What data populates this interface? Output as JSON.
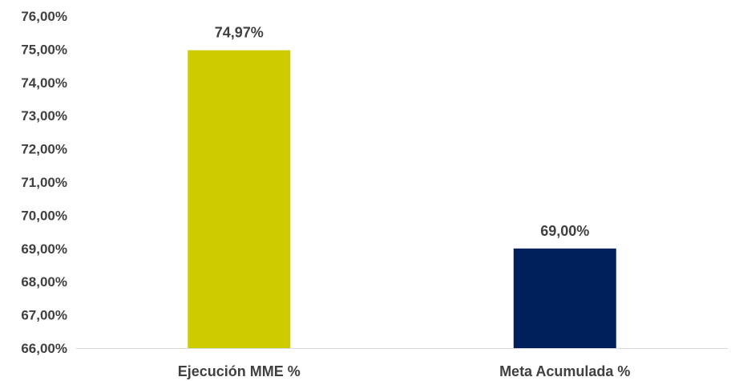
{
  "chart_data": {
    "type": "bar",
    "title": "",
    "xlabel": "",
    "ylabel": "",
    "categories": [
      "Ejecución MME %",
      "Meta Acumulada %"
    ],
    "values": [
      74.97,
      69.0
    ],
    "data_labels": [
      "74,97%",
      "69,00%"
    ],
    "bar_colors": [
      "#CCCC00",
      "#00205B"
    ],
    "ylim": [
      66,
      76
    ],
    "y_ticks": [
      "76,00%",
      "75,00%",
      "74,00%",
      "73,00%",
      "72,00%",
      "71,00%",
      "70,00%",
      "69,00%",
      "68,00%",
      "67,00%",
      "66,00%"
    ],
    "y_tick_values": [
      76,
      75,
      74,
      73,
      72,
      71,
      70,
      69,
      68,
      67,
      66
    ],
    "grid": false,
    "legend": "none",
    "label_color": "#404040",
    "axis_color": "#D9D9D9"
  }
}
